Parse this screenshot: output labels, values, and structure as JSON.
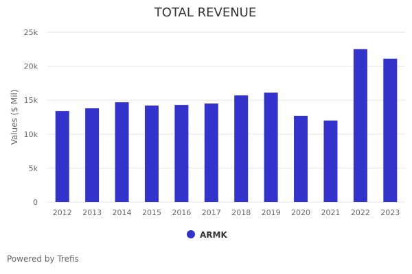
{
  "chart_data": {
    "type": "bar",
    "title": "TOTAL REVENUE",
    "xlabel": "",
    "ylabel": "Values ($ Mil)",
    "ylim": [
      0,
      25000
    ],
    "y_ticks": [
      0,
      5000,
      10000,
      15000,
      20000,
      25000
    ],
    "y_tick_labels": [
      "0",
      "5k",
      "10k",
      "15k",
      "20k",
      "25k"
    ],
    "categories": [
      "2012",
      "2013",
      "2014",
      "2015",
      "2016",
      "2017",
      "2018",
      "2019",
      "2020",
      "2021",
      "2022",
      "2023"
    ],
    "series": [
      {
        "name": "ARMK",
        "color": "#3333cc",
        "values": [
          13400,
          13800,
          14700,
          14200,
          14300,
          14500,
          15700,
          16100,
          12700,
          12000,
          22500,
          21100
        ]
      }
    ],
    "grid": true,
    "legend_position": "bottom-center"
  },
  "credit": "Powered by Trefis"
}
